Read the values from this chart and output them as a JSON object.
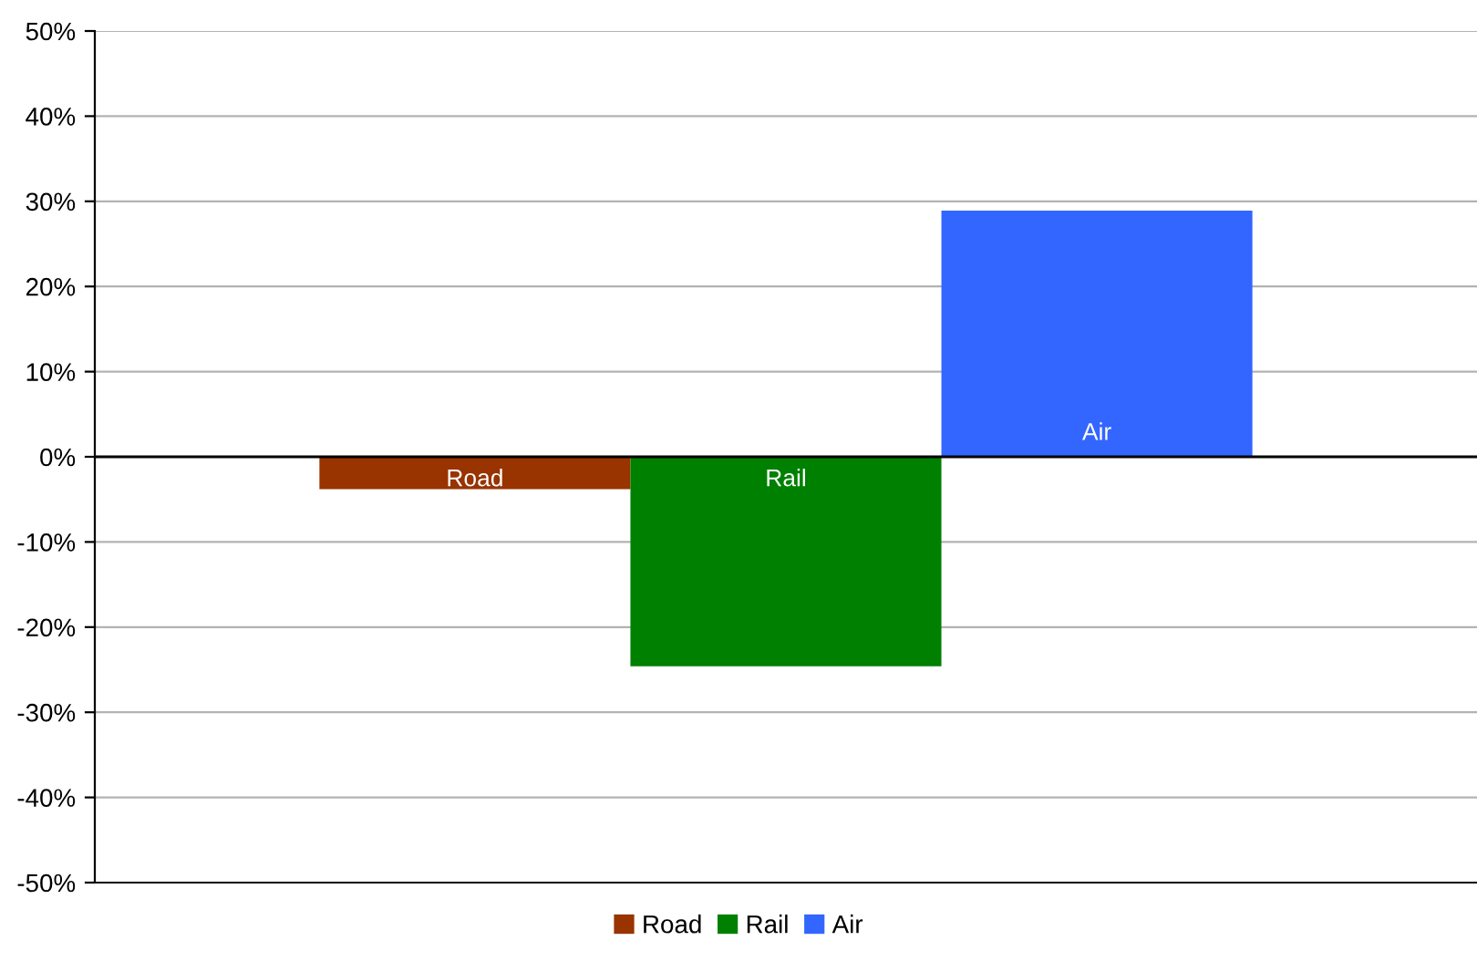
{
  "chart_data": {
    "type": "bar",
    "categories": [
      null
    ],
    "series": [
      {
        "name": "Road",
        "color": "#993300",
        "values": [
          -3.8
        ]
      },
      {
        "name": "Rail",
        "color": "#008000",
        "values": [
          -24.6
        ]
      },
      {
        "name": "Air",
        "color": "#3366ff",
        "values": [
          28.9
        ]
      }
    ],
    "ylim": [
      -50,
      50
    ],
    "yticks": [
      {
        "value": -50,
        "label": "-50%"
      },
      {
        "value": -40,
        "label": "-40%"
      },
      {
        "value": -30,
        "label": "-30%"
      },
      {
        "value": -20,
        "label": "-20%"
      },
      {
        "value": -10,
        "label": "-10%"
      },
      {
        "value": 0,
        "label": "0%"
      },
      {
        "value": 10,
        "label": "10%"
      },
      {
        "value": 20,
        "label": "20%"
      },
      {
        "value": 30,
        "label": "30%"
      },
      {
        "value": 40,
        "label": "40%"
      },
      {
        "value": 50,
        "label": "50%"
      }
    ],
    "grid": "y",
    "legend": "bottom"
  }
}
